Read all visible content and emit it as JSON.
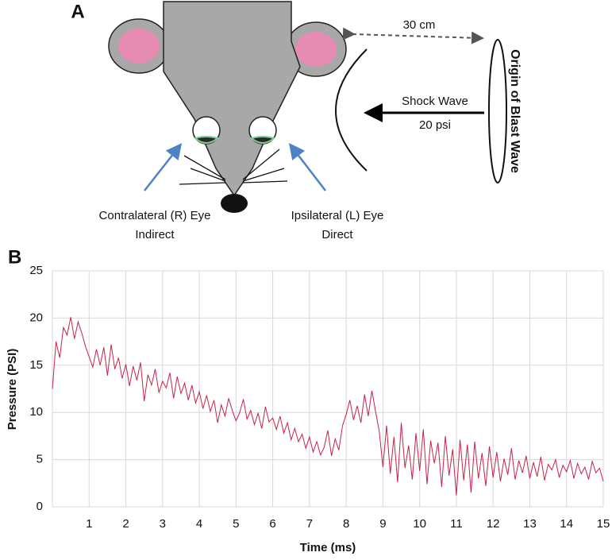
{
  "panel_a": {
    "label": "A",
    "distance": "30 cm",
    "shock_wave": "Shock Wave",
    "shock_pressure": "20 psi",
    "origin": "Origin of Blast Wave",
    "left_eye": {
      "line1": "Contralateral (R) Eye",
      "line2": "Indirect"
    },
    "right_eye": {
      "line1": "Ipsilateral (L) Eye",
      "line2": "Direct"
    }
  },
  "chart_data": {
    "type": "line",
    "panel_label": "B",
    "x_label": "Time (ms)",
    "y_label": "Pressure (PSI)",
    "color": "#c8224a",
    "grid": true,
    "xlim": [
      0,
      15
    ],
    "xticks": [
      1,
      2,
      3,
      4,
      5,
      6,
      7,
      8,
      9,
      10,
      11,
      12,
      13,
      14,
      15
    ],
    "ylim": [
      0,
      25
    ],
    "yticks": [
      0,
      5,
      10,
      15,
      20,
      25
    ],
    "x": [
      0,
      0.1,
      0.2,
      0.3,
      0.4,
      0.5,
      0.6,
      0.7,
      0.8,
      0.9,
      1,
      1.1,
      1.2,
      1.3,
      1.4,
      1.5,
      1.6,
      1.7,
      1.8,
      1.9,
      2,
      2.1,
      2.2,
      2.3,
      2.4,
      2.5,
      2.6,
      2.7,
      2.8,
      2.9,
      3,
      3.1,
      3.2,
      3.3,
      3.4,
      3.5,
      3.6,
      3.7,
      3.8,
      3.9,
      4,
      4.1,
      4.2,
      4.3,
      4.4,
      4.5,
      4.6,
      4.7,
      4.8,
      4.9,
      5,
      5.1,
      5.2,
      5.3,
      5.4,
      5.5,
      5.6,
      5.7,
      5.8,
      5.9,
      6,
      6.1,
      6.2,
      6.3,
      6.4,
      6.5,
      6.6,
      6.7,
      6.8,
      6.9,
      7,
      7.1,
      7.2,
      7.3,
      7.4,
      7.5,
      7.6,
      7.7,
      7.8,
      7.9,
      8,
      8.1,
      8.2,
      8.3,
      8.4,
      8.5,
      8.6,
      8.7,
      8.8,
      8.9,
      9,
      9.1,
      9.2,
      9.3,
      9.4,
      9.5,
      9.6,
      9.7,
      9.8,
      9.9,
      10,
      10.1,
      10.2,
      10.3,
      10.4,
      10.5,
      10.6,
      10.7,
      10.8,
      10.9,
      11,
      11.1,
      11.2,
      11.3,
      11.4,
      11.5,
      11.6,
      11.7,
      11.8,
      11.9,
      12,
      12.1,
      12.2,
      12.3,
      12.4,
      12.5,
      12.6,
      12.7,
      12.8,
      12.9,
      13,
      13.1,
      13.2,
      13.3,
      13.4,
      13.5,
      13.6,
      13.7,
      13.8,
      13.9,
      14,
      14.1,
      14.2,
      14.3,
      14.4,
      14.5,
      14.6,
      14.7,
      14.8,
      14.9,
      15
    ],
    "values": [
      12.5,
      17.5,
      15.8,
      19.0,
      18.2,
      20.1,
      17.8,
      19.6,
      18.4,
      17.0,
      15.9,
      14.8,
      16.7,
      15.0,
      16.9,
      13.9,
      17.2,
      14.6,
      15.8,
      13.6,
      15.1,
      12.8,
      14.9,
      13.4,
      15.3,
      11.2,
      14.0,
      12.9,
      14.6,
      12.1,
      13.3,
      12.6,
      14.2,
      11.5,
      13.8,
      12.0,
      13.1,
      11.3,
      12.9,
      11.0,
      12.2,
      10.4,
      11.8,
      10.1,
      11.3,
      8.9,
      10.8,
      9.6,
      11.5,
      10.2,
      9.1,
      10.0,
      11.4,
      9.3,
      10.2,
      8.7,
      9.9,
      8.3,
      10.6,
      9.0,
      9.4,
      8.2,
      9.6,
      7.8,
      8.9,
      7.1,
      8.3,
      6.9,
      7.7,
      6.2,
      7.4,
      5.8,
      6.9,
      5.5,
      6.3,
      8.1,
      5.4,
      7.2,
      6.0,
      8.6,
      9.8,
      11.3,
      9.2,
      10.7,
      8.9,
      11.9,
      9.6,
      12.3,
      10.1,
      8.0,
      4.2,
      8.6,
      3.5,
      7.4,
      2.6,
      8.9,
      4.1,
      6.5,
      2.9,
      7.8,
      3.8,
      8.2,
      2.4,
      7.0,
      4.6,
      6.8,
      2.1,
      7.5,
      3.3,
      6.1,
      1.2,
      7.1,
      2.8,
      6.6,
      1.5,
      6.9,
      3.0,
      5.7,
      2.2,
      6.4,
      3.1,
      5.8,
      2.7,
      5.1,
      3.4,
      6.2,
      2.9,
      4.9,
      3.6,
      5.4,
      3.0,
      4.7,
      3.2,
      5.3,
      2.8,
      4.5,
      3.9,
      5.0,
      3.1,
      4.4,
      3.7,
      4.9,
      3.0,
      4.6,
      3.5,
      4.2,
      2.9,
      4.8,
      3.6,
      4.1,
      2.7
    ]
  }
}
